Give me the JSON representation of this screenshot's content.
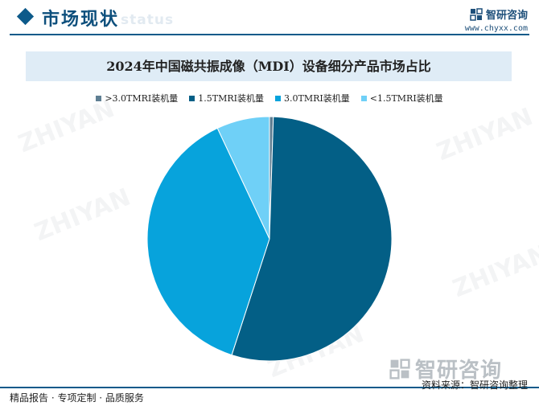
{
  "header": {
    "title": "市场现状",
    "subtitle": "status",
    "brand_name": "智研咨询",
    "brand_url": "www.chyxx.com"
  },
  "footer": {
    "left_text": "精品报告 · 专项定制 · 品质服务",
    "source_text": "资料来源：智研咨询整理",
    "brand_name_large": "智研咨询"
  },
  "colors": {
    "accent": "#0d5a8a"
  },
  "chart_data": {
    "type": "pie",
    "title": "2024年中国磁共振成像（MDI）设备细分产品市场占比",
    "legend_position": "top",
    "series": [
      {
        "name": ">3.0TMRI装机量",
        "value": 0.5,
        "color": "#5f7f93"
      },
      {
        "name": "1.5TMRI装机量",
        "value": 54.5,
        "color": "#035f86"
      },
      {
        "name": "3.0TMRI装机量",
        "value": 38.0,
        "color": "#07a3dc"
      },
      {
        "name": "<1.5TMRI装机量",
        "value": 7.0,
        "color": "#6fd0f7"
      }
    ]
  }
}
